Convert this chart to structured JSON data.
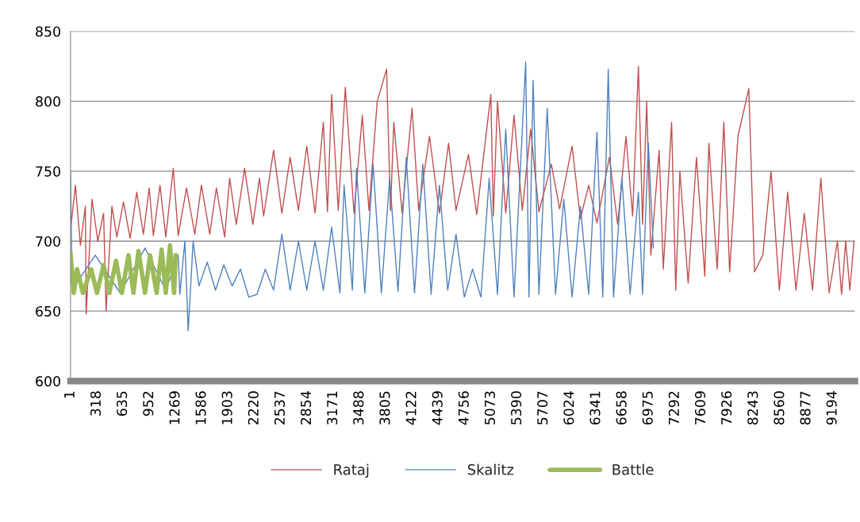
{
  "chart_data": {
    "type": "line",
    "xlim": [
      1,
      9460
    ],
    "ylim": [
      600,
      850
    ],
    "yticks": [
      600,
      650,
      700,
      750,
      800,
      850
    ],
    "xticks": [
      1,
      318,
      635,
      952,
      1269,
      1586,
      1903,
      2220,
      2537,
      2854,
      3171,
      3488,
      3805,
      4122,
      4439,
      4756,
      5073,
      5390,
      5707,
      6024,
      6341,
      6658,
      6975,
      7292,
      7609,
      7926,
      8243,
      8560,
      8877,
      9194
    ],
    "grid": "y",
    "legend": "bottom",
    "marker": "none",
    "line_style": "solid",
    "series": [
      {
        "name": "Rataj",
        "color": "#c0504d",
        "x": [
          1,
          60,
          120,
          180,
          190,
          260,
          330,
          400,
          430,
          500,
          560,
          640,
          720,
          800,
          880,
          950,
          1000,
          1080,
          1150,
          1240,
          1300,
          1400,
          1500,
          1580,
          1680,
          1760,
          1860,
          1920,
          2000,
          2100,
          2200,
          2280,
          2330,
          2450,
          2550,
          2650,
          2750,
          2850,
          2950,
          3050,
          3100,
          3150,
          3230,
          3315,
          3420,
          3520,
          3600,
          3700,
          3813,
          3860,
          3900,
          4000,
          4120,
          4200,
          4330,
          4450,
          4560,
          4650,
          4800,
          4900,
          5070,
          5100,
          5150,
          5250,
          5350,
          5450,
          5550,
          5650,
          5800,
          5900,
          6050,
          6150,
          6250,
          6350,
          6500,
          6600,
          6700,
          6780,
          6850,
          6900,
          6950,
          7000,
          7100,
          7150,
          7250,
          7300,
          7350,
          7450,
          7550,
          7650,
          7700,
          7800,
          7880,
          7950,
          8050,
          8181,
          8250,
          8350,
          8450,
          8550,
          8650,
          8750,
          8850,
          8950,
          9050,
          9150,
          9250,
          9300,
          9350,
          9400,
          9450
        ],
        "values": [
          708,
          740,
          697,
          725,
          648,
          730,
          700,
          720,
          650,
          725,
          703,
          728,
          702,
          735,
          705,
          738,
          704,
          740,
          703,
          752,
          704,
          738,
          705,
          740,
          705,
          738,
          703,
          745,
          712,
          752,
          712,
          745,
          718,
          765,
          720,
          760,
          722,
          768,
          720,
          785,
          721,
          805,
          722,
          810,
          720,
          790,
          722,
          800,
          823,
          722,
          785,
          720,
          795,
          722,
          775,
          720,
          770,
          722,
          762,
          719,
          805,
          718,
          800,
          720,
          790,
          722,
          780,
          721,
          755,
          723,
          768,
          716,
          740,
          713,
          760,
          712,
          775,
          718,
          825,
          712,
          800,
          690,
          765,
          680,
          785,
          665,
          750,
          670,
          760,
          675,
          770,
          680,
          785,
          678,
          775,
          809,
          678,
          690,
          750,
          665,
          735,
          665,
          720,
          665,
          745,
          663,
          700,
          662,
          700,
          665,
          700
        ]
      },
      {
        "name": "Skalitz",
        "color": "#4f81bd",
        "x": [
          1,
          20,
          300,
          600,
          900,
          1150,
          1300,
          1320,
          1380,
          1420,
          1480,
          1550,
          1650,
          1750,
          1850,
          1950,
          2050,
          2150,
          2250,
          2350,
          2450,
          2550,
          2650,
          2750,
          2850,
          2950,
          3050,
          3150,
          3250,
          3300,
          3400,
          3450,
          3550,
          3650,
          3750,
          3850,
          3950,
          4050,
          4150,
          4250,
          4350,
          4450,
          4550,
          4650,
          4750,
          4850,
          4950,
          5050,
          5150,
          5250,
          5350,
          5490,
          5530,
          5580,
          5650,
          5750,
          5850,
          5950,
          6050,
          6150,
          6250,
          6350,
          6420,
          6486,
          6550,
          6650,
          6750,
          6850,
          6900,
          6970,
          7030
        ],
        "values": [
          750,
          665,
          690,
          663,
          695,
          665,
          690,
          662,
          700,
          636,
          700,
          668,
          685,
          665,
          683,
          668,
          680,
          660,
          662,
          680,
          665,
          705,
          665,
          700,
          665,
          700,
          665,
          710,
          663,
          740,
          665,
          752,
          663,
          755,
          663,
          745,
          664,
          760,
          663,
          755,
          662,
          740,
          665,
          705,
          660,
          680,
          660,
          745,
          662,
          780,
          660,
          828,
          660,
          815,
          662,
          795,
          662,
          730,
          660,
          725,
          662,
          778,
          660,
          823,
          660,
          745,
          662,
          735,
          662,
          770,
          695
        ]
      },
      {
        "name": "Battle",
        "color": "#9bbb59",
        "x": [
          1,
          40,
          80,
          150,
          250,
          320,
          400,
          470,
          550,
          620,
          700,
          760,
          820,
          900,
          960,
          1040,
          1100,
          1150,
          1200,
          1250,
          1270
        ],
        "values": [
          692,
          663,
          680,
          663,
          680,
          663,
          683,
          663,
          686,
          663,
          690,
          663,
          693,
          663,
          690,
          663,
          694,
          663,
          697,
          663,
          690
        ]
      }
    ]
  }
}
